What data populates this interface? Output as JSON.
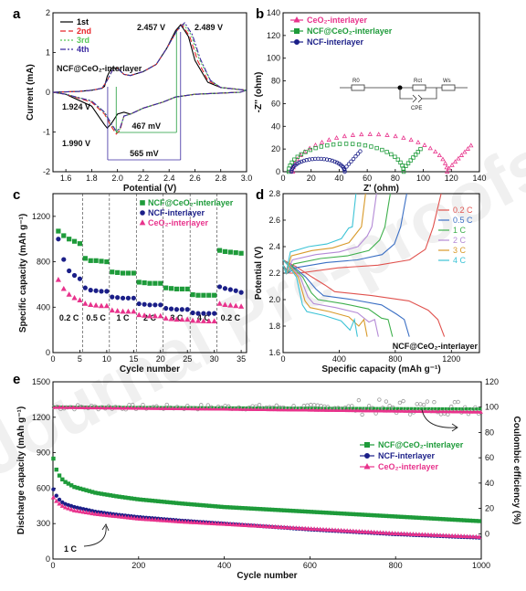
{
  "chart_data": [
    {
      "panel": "a",
      "type": "line",
      "xlabel": "Potential (V)",
      "ylabel": "Current (mA)",
      "xlim": [
        1.5,
        3.0
      ],
      "ylim": [
        -2,
        2
      ],
      "xticks": [
        "1.6",
        "1.8",
        "2.0",
        "2.2",
        "2.4",
        "2.6",
        "2.8",
        "3.0"
      ],
      "yticks": [
        "-2",
        "-1",
        "0",
        "1",
        "2"
      ],
      "annotations": [
        "2.457 V",
        "2.489 V",
        "1.924 V",
        "1.990 V",
        "467 mV",
        "565 mV"
      ],
      "inset_label": "NCF@CeO2-interlayer",
      "legend": "top-left",
      "series": [
        {
          "name": "1st",
          "color": "#000000",
          "dash": "solid",
          "x": [
            1.5,
            1.7,
            1.8,
            1.85,
            1.88,
            1.9,
            1.92,
            1.95,
            2.0,
            2.05,
            2.1,
            2.2,
            2.3,
            2.38,
            2.45,
            2.49,
            2.55,
            2.6,
            2.7,
            2.8,
            3.0,
            2.95,
            2.8,
            2.6,
            2.45,
            2.35,
            2.3,
            2.2,
            2.1,
            2.05,
            2.0,
            1.95,
            1.92,
            1.9,
            1.8,
            1.6,
            1.5
          ],
          "y": [
            0.0,
            0.02,
            0.05,
            0.08,
            0.1,
            0.15,
            0.4,
            0.6,
            0.6,
            0.45,
            0.42,
            0.52,
            0.7,
            1.1,
            1.55,
            1.7,
            1.4,
            0.8,
            0.25,
            0.12,
            0.05,
            0.0,
            -0.02,
            -0.05,
            -0.12,
            -0.25,
            -0.3,
            -0.4,
            -0.55,
            -0.5,
            -0.55,
            -0.8,
            -0.9,
            -0.82,
            -0.35,
            -0.05,
            0.0
          ]
        },
        {
          "name": "2nd",
          "color": "#e8262a",
          "dash": "6,3",
          "x": [
            1.5,
            1.7,
            1.8,
            1.88,
            1.92,
            1.96,
            2.0,
            2.05,
            2.1,
            2.2,
            2.3,
            2.38,
            2.46,
            2.5,
            2.56,
            2.62,
            2.7,
            2.8,
            3.0,
            2.95,
            2.8,
            2.6,
            2.45,
            2.35,
            2.3,
            2.2,
            2.1,
            2.05,
            2.02,
            1.99,
            1.95,
            1.9,
            1.8,
            1.6,
            1.5
          ],
          "y": [
            0.0,
            0.02,
            0.05,
            0.1,
            0.3,
            0.55,
            0.6,
            0.45,
            0.42,
            0.52,
            0.7,
            1.1,
            1.55,
            1.7,
            1.4,
            0.8,
            0.3,
            0.12,
            0.05,
            0.0,
            -0.02,
            -0.05,
            -0.12,
            -0.25,
            -0.3,
            -0.4,
            -0.55,
            -0.6,
            -0.95,
            -1.05,
            -0.85,
            -0.55,
            -0.25,
            -0.05,
            0.0
          ]
        },
        {
          "name": "3rd",
          "color": "#58c858",
          "dash": "2,2",
          "x": [
            1.5,
            1.7,
            1.8,
            1.88,
            1.92,
            1.96,
            2.0,
            2.05,
            2.1,
            2.2,
            2.3,
            2.38,
            2.46,
            2.51,
            2.57,
            2.63,
            2.72,
            2.8,
            3.0,
            2.95,
            2.8,
            2.6,
            2.45,
            2.35,
            2.3,
            2.2,
            2.1,
            2.05,
            2.02,
            1.99,
            1.95,
            1.9,
            1.8,
            1.6,
            1.5
          ],
          "y": [
            0.0,
            0.02,
            0.05,
            0.1,
            0.3,
            0.55,
            0.6,
            0.45,
            0.42,
            0.52,
            0.7,
            1.1,
            1.55,
            1.72,
            1.45,
            0.85,
            0.3,
            0.12,
            0.05,
            0.0,
            -0.02,
            -0.05,
            -0.12,
            -0.25,
            -0.3,
            -0.4,
            -0.55,
            -0.6,
            -0.92,
            -1.0,
            -0.8,
            -0.52,
            -0.22,
            -0.05,
            0.0
          ]
        },
        {
          "name": "4th",
          "color": "#3b2aa0",
          "dash": "6,2,2,2",
          "x": [
            1.5,
            1.7,
            1.8,
            1.88,
            1.92,
            1.96,
            2.0,
            2.05,
            2.1,
            2.2,
            2.3,
            2.38,
            2.46,
            2.52,
            2.58,
            2.64,
            2.72,
            2.8,
            3.0,
            2.95,
            2.8,
            2.6,
            2.45,
            2.35,
            2.3,
            2.2,
            2.1,
            2.05,
            2.02,
            1.99,
            1.95,
            1.9,
            1.8,
            1.6,
            1.5
          ],
          "y": [
            0.0,
            0.02,
            0.05,
            0.1,
            0.3,
            0.55,
            0.6,
            0.45,
            0.42,
            0.52,
            0.7,
            1.1,
            1.55,
            1.75,
            1.45,
            0.85,
            0.3,
            0.12,
            0.05,
            0.0,
            -0.02,
            -0.05,
            -0.12,
            -0.25,
            -0.3,
            -0.4,
            -0.55,
            -0.6,
            -0.9,
            -0.98,
            -0.78,
            -0.5,
            -0.22,
            -0.05,
            0.0
          ]
        }
      ]
    },
    {
      "panel": "b",
      "type": "scatter",
      "xlabel": "Z' (ohm)",
      "ylabel": "-Z'' (ohm)",
      "xlim": [
        0,
        140
      ],
      "ylim": [
        0,
        140
      ],
      "xticks": [
        "0",
        "20",
        "40",
        "60",
        "80",
        "100",
        "120",
        "140"
      ],
      "yticks": [
        "0",
        "20",
        "40",
        "60",
        "80",
        "100",
        "120",
        "140"
      ],
      "legend": "top-left",
      "circuit_labels": [
        "R0",
        "Rct",
        "Ws",
        "CPE"
      ],
      "series": [
        {
          "name": "CeO2-interlayer",
          "color": "#e8338c",
          "marker": "triangle",
          "center": 62,
          "radius": 55,
          "tail_start": 116,
          "tail_end": [
            134,
            23
          ]
        },
        {
          "name": "NCF@CeO2-interlayer",
          "color": "#1e9b3a",
          "marker": "square",
          "center": 45,
          "radius": 41,
          "tail_start": 84,
          "tail_end": [
            98,
            20
          ]
        },
        {
          "name": "NCF-interlayer",
          "color": "#1b1f88",
          "marker": "circle",
          "center": 25,
          "radius": 19,
          "tail_start": 42,
          "tail_end": [
            55,
            18
          ]
        }
      ]
    },
    {
      "panel": "c",
      "type": "scatter",
      "xlabel": "Cycle number",
      "ylabel": "Specific capacity (mAh g⁻¹)",
      "xlim": [
        0,
        36
      ],
      "ylim": [
        0,
        1400
      ],
      "xticks": [
        "0",
        "5",
        "10",
        "15",
        "20",
        "25",
        "30",
        "35"
      ],
      "yticks": [
        "0",
        "400",
        "800",
        "1200"
      ],
      "rate_labels": [
        "0.2 C",
        "0.5 C",
        "1 C",
        "2 C",
        "3 C",
        "4 C",
        "0.2 C"
      ],
      "legend": "top-right",
      "series": [
        {
          "name": "NCF@CeO2-interlayer",
          "color": "#1e9b3a",
          "marker": "square",
          "values": [
            1070,
            1030,
            1000,
            980,
            960,
            830,
            810,
            810,
            805,
            800,
            710,
            705,
            700,
            700,
            700,
            620,
            615,
            610,
            610,
            610,
            570,
            565,
            560,
            560,
            560,
            510,
            505,
            505,
            505,
            505,
            900,
            890,
            885,
            880,
            875
          ]
        },
        {
          "name": "NCF-interlayer",
          "color": "#1b1f88",
          "marker": "circle",
          "values": [
            1000,
            820,
            720,
            680,
            650,
            570,
            550,
            545,
            540,
            540,
            490,
            485,
            480,
            480,
            480,
            430,
            425,
            420,
            420,
            420,
            390,
            385,
            380,
            380,
            380,
            350,
            345,
            345,
            345,
            345,
            580,
            565,
            555,
            545,
            530
          ]
        },
        {
          "name": "CeO2-interlayer",
          "color": "#e8338c",
          "marker": "triangle",
          "values": [
            640,
            560,
            510,
            480,
            460,
            430,
            420,
            415,
            410,
            410,
            370,
            365,
            360,
            360,
            360,
            330,
            325,
            320,
            320,
            320,
            300,
            295,
            290,
            290,
            290,
            280,
            278,
            276,
            275,
            275,
            430,
            420,
            415,
            410,
            405
          ]
        }
      ]
    },
    {
      "panel": "d",
      "type": "line",
      "xlabel": "Specific capacity (mAh g⁻¹)",
      "ylabel": "Potential (V)",
      "xlim": [
        0,
        1400
      ],
      "ylim": [
        1.6,
        2.8
      ],
      "xticks": [
        "0",
        "400",
        "800",
        "1200"
      ],
      "yticks": [
        "1.6",
        "1.8",
        "2.0",
        "2.2",
        "2.4",
        "2.6",
        "2.8"
      ],
      "inset_label": "NCF@CeO2-interlayer",
      "legend": "top-right",
      "series": [
        {
          "name": "0.2 C",
          "color": "#e0524e",
          "capacity": 1150,
          "charge_plateau": 2.24,
          "discharge_plateau": 2.06
        },
        {
          "name": "0.5 C",
          "color": "#3b6fc4",
          "capacity": 900,
          "charge_plateau": 2.28,
          "discharge_plateau": 2.03
        },
        {
          "name": "1 C",
          "color": "#3fb04d",
          "capacity": 780,
          "charge_plateau": 2.31,
          "discharge_plateau": 2.0
        },
        {
          "name": "2 C",
          "color": "#b48ad6",
          "capacity": 680,
          "charge_plateau": 2.34,
          "discharge_plateau": 1.97
        },
        {
          "name": "3 C",
          "color": "#d89a2a",
          "capacity": 600,
          "charge_plateau": 2.37,
          "discharge_plateau": 1.94
        },
        {
          "name": "4 C",
          "color": "#3cc3d6",
          "capacity": 530,
          "charge_plateau": 2.4,
          "discharge_plateau": 1.91
        }
      ]
    },
    {
      "panel": "e",
      "type": "scatter",
      "xlabel": "Cycle number",
      "ylabel": "Discharge capacity (mAh g⁻¹)",
      "ylabel_right": "Coulombic efficiency (%)",
      "xlim": [
        0,
        1000
      ],
      "ylim": [
        0,
        1500
      ],
      "ylim_right": [
        -20,
        120
      ],
      "xticks": [
        "0",
        "200",
        "400",
        "600",
        "800",
        "1000"
      ],
      "yticks": [
        "0",
        "300",
        "600",
        "900",
        "1200",
        "1500"
      ],
      "yticks_right": [
        "0",
        "20",
        "40",
        "60",
        "80",
        "100",
        "120"
      ],
      "rate_label": "1 C",
      "legend": "middle-right",
      "series": [
        {
          "name": "NCF@CeO2-interlayer",
          "color": "#1e9b3a",
          "marker": "square",
          "x": [
            1,
            10,
            25,
            50,
            100,
            150,
            200,
            300,
            400,
            500,
            600,
            700,
            800,
            900,
            1000
          ],
          "y": [
            850,
            730,
            660,
            610,
            560,
            530,
            505,
            470,
            440,
            420,
            400,
            380,
            360,
            340,
            320
          ]
        },
        {
          "name": "NCF-interlayer",
          "color": "#1b1f88",
          "marker": "circle",
          "x": [
            1,
            10,
            25,
            50,
            100,
            150,
            200,
            300,
            400,
            500,
            600,
            700,
            800,
            900,
            1000
          ],
          "y": [
            590,
            520,
            470,
            440,
            400,
            375,
            355,
            325,
            300,
            275,
            250,
            230,
            210,
            195,
            180
          ]
        },
        {
          "name": "CeO2-interlayer",
          "color": "#e8338c",
          "marker": "triangle",
          "x": [
            1,
            10,
            25,
            50,
            100,
            150,
            200,
            300,
            400,
            500,
            600,
            700,
            800,
            900,
            1000
          ],
          "y": [
            520,
            480,
            440,
            410,
            380,
            360,
            340,
            315,
            295,
            275,
            255,
            235,
            215,
            200,
            185
          ]
        }
      ],
      "coulombic_efficiency_pct": 100
    }
  ],
  "watermark": "Journal Pre-proofs"
}
